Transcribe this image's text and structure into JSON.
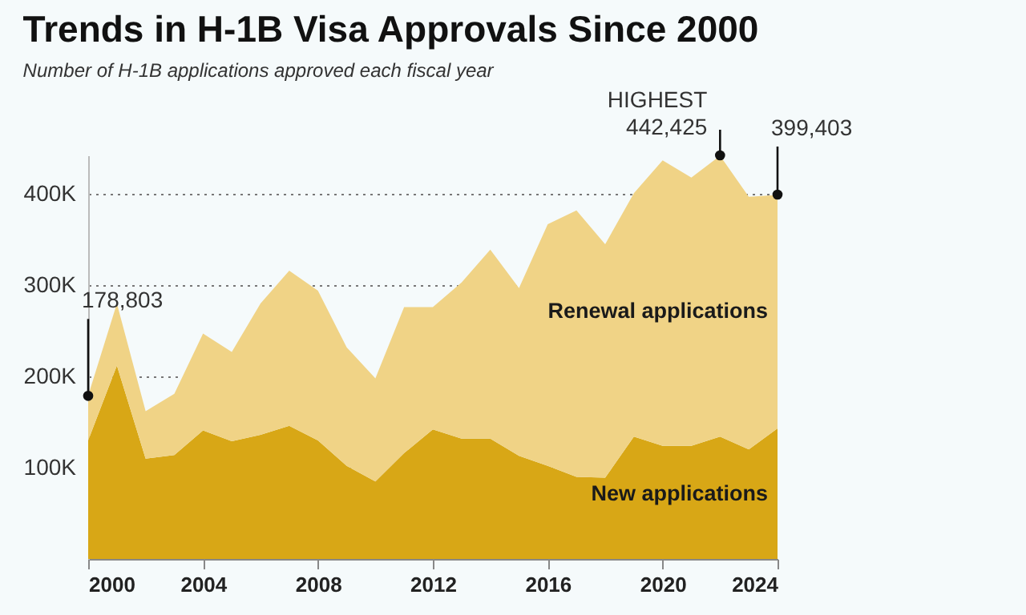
{
  "chart_data": {
    "type": "area",
    "stacked": true,
    "title": "Trends in H-1B Visa Approvals Since 2000",
    "subtitle": "Number of H-1B applications approved each fiscal year",
    "x": [
      2000,
      2001,
      2002,
      2003,
      2004,
      2005,
      2006,
      2007,
      2008,
      2009,
      2010,
      2011,
      2012,
      2013,
      2014,
      2015,
      2016,
      2017,
      2018,
      2019,
      2020,
      2021,
      2022,
      2023,
      2024
    ],
    "series": [
      {
        "name": "New applications",
        "color": "#d8a716",
        "values": [
          130000,
          212000,
          110000,
          114000,
          141000,
          129000,
          136000,
          146000,
          130000,
          102000,
          85000,
          116000,
          142000,
          132000,
          132000,
          113000,
          102000,
          90000,
          89000,
          134000,
          124000,
          124000,
          134000,
          120000,
          143000
        ]
      },
      {
        "name": "Renewal applications",
        "color": "#f0d386",
        "values": [
          49000,
          68000,
          52000,
          67000,
          106000,
          98000,
          144000,
          170000,
          164000,
          130000,
          113000,
          160000,
          134000,
          171000,
          207000,
          184000,
          265000,
          292000,
          256000,
          267000,
          313000,
          294000,
          308000,
          277000,
          256000
        ]
      }
    ],
    "xlim": [
      2000,
      2024
    ],
    "xticks": [
      2000,
      2004,
      2008,
      2012,
      2016,
      2020,
      2024
    ],
    "ylim": [
      0,
      442425
    ],
    "yticks": [
      {
        "value": 100000,
        "label": "100K"
      },
      {
        "value": 200000,
        "label": "200K"
      },
      {
        "value": 300000,
        "label": "300K"
      },
      {
        "value": 400000,
        "label": "400K"
      }
    ],
    "grid": "y",
    "legend": false,
    "annotations": [
      {
        "text": "178,803",
        "x": 2000,
        "y": 178803
      },
      {
        "text": "HIGHEST",
        "x": 2022,
        "y": 442425
      },
      {
        "text": "442,425",
        "x": 2022,
        "y": 442425
      },
      {
        "text": "399,403",
        "x": 2024,
        "y": 399403
      }
    ]
  }
}
